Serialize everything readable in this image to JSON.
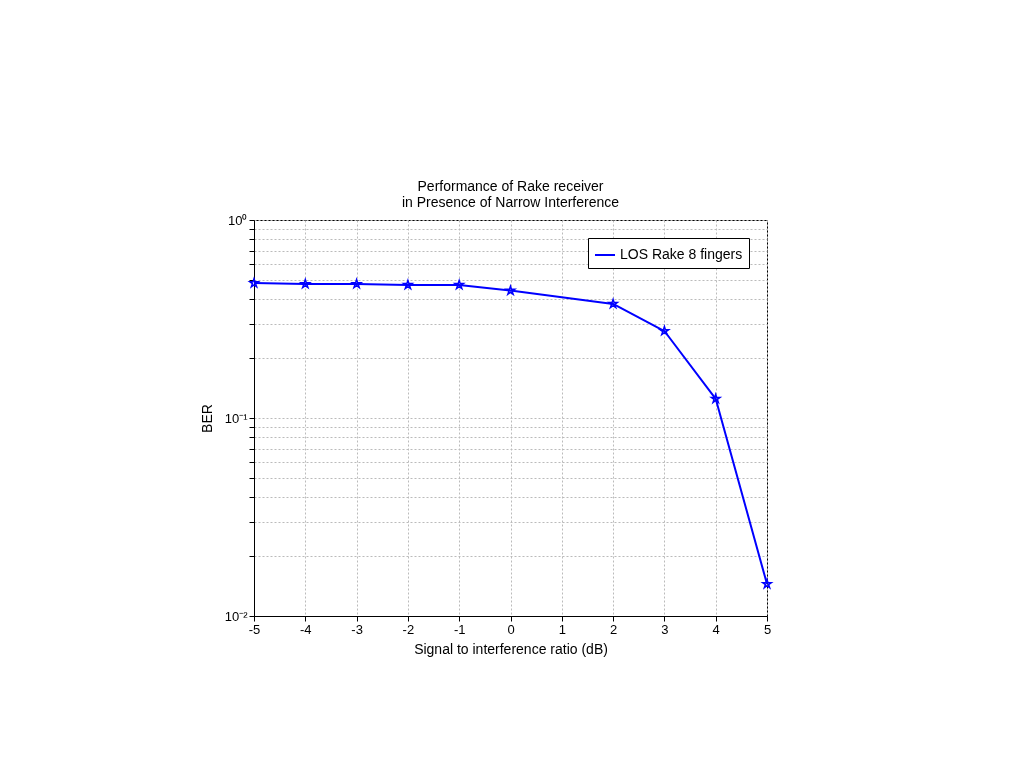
{
  "chart_data": {
    "type": "line",
    "title": "Performance of Rake receiver\nin Presence of Narrow Interference",
    "xlabel": "Signal to interference ratio (dB)",
    "ylabel": "BER",
    "x": [
      -5,
      -4,
      -3,
      -2,
      -1,
      0,
      2,
      3,
      4,
      5
    ],
    "series": [
      {
        "name": "LOS Rake 8 fingers",
        "color": "#0000ff",
        "values": [
          0.48,
          0.475,
          0.475,
          0.47,
          0.47,
          0.44,
          0.377,
          0.275,
          0.125,
          0.0145
        ]
      }
    ],
    "log": "y",
    "xlim": [
      -5,
      5
    ],
    "xticks": [
      -5,
      -4,
      -3,
      -2,
      -1,
      0,
      1,
      2,
      3,
      4,
      5
    ],
    "ylim": [
      0.01,
      1
    ],
    "yticks": [
      {
        "value": 0.01,
        "label": "10⁻²"
      },
      {
        "value": 0.02,
        "label": null
      },
      {
        "value": 0.03,
        "label": null
      },
      {
        "value": 0.04,
        "label": null
      },
      {
        "value": 0.05,
        "label": null
      },
      {
        "value": 0.06,
        "label": null
      },
      {
        "value": 0.07,
        "label": null
      },
      {
        "value": 0.08,
        "label": null
      },
      {
        "value": 0.09,
        "label": null
      },
      {
        "value": 0.1,
        "label": "10⁻¹"
      },
      {
        "value": 0.2,
        "label": null
      },
      {
        "value": 0.3,
        "label": null
      },
      {
        "value": 0.4,
        "label": null
      },
      {
        "value": 0.5,
        "label": null
      },
      {
        "value": 0.6,
        "label": null
      },
      {
        "value": 0.7,
        "label": null
      },
      {
        "value": 0.8,
        "label": null
      },
      {
        "value": 0.9,
        "label": null
      },
      {
        "value": 1,
        "label": "10⁰"
      }
    ],
    "grid": true,
    "legend": "top right",
    "marker": "star",
    "line_style": "solid"
  }
}
